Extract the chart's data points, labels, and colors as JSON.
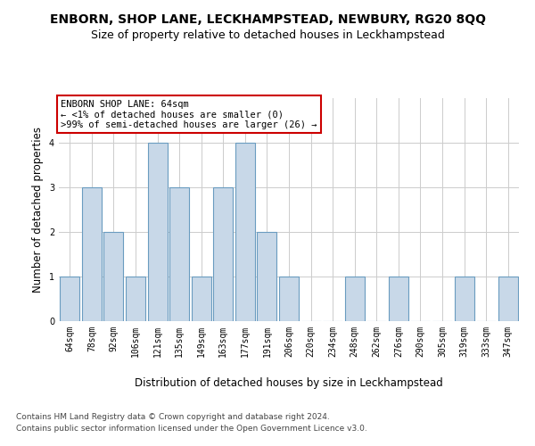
{
  "title": "ENBORN, SHOP LANE, LECKHAMPSTEAD, NEWBURY, RG20 8QQ",
  "subtitle": "Size of property relative to detached houses in Leckhampstead",
  "xlabel": "Distribution of detached houses by size in Leckhampstead",
  "ylabel": "Number of detached properties",
  "categories": [
    "64sqm",
    "78sqm",
    "92sqm",
    "106sqm",
    "121sqm",
    "135sqm",
    "149sqm",
    "163sqm",
    "177sqm",
    "191sqm",
    "206sqm",
    "220sqm",
    "234sqm",
    "248sqm",
    "262sqm",
    "276sqm",
    "290sqm",
    "305sqm",
    "319sqm",
    "333sqm",
    "347sqm"
  ],
  "values": [
    1,
    3,
    2,
    1,
    4,
    3,
    1,
    3,
    4,
    2,
    1,
    0,
    0,
    1,
    0,
    1,
    0,
    0,
    1,
    0,
    1
  ],
  "bar_color": "#c8d8e8",
  "bar_edge_color": "#6a9cc0",
  "annotation_box_text": "ENBORN SHOP LANE: 64sqm\n← <1% of detached houses are smaller (0)\n>99% of semi-detached houses are larger (26) →",
  "annotation_box_color": "#ffffff",
  "annotation_box_edge_color": "#cc0000",
  "ylim": [
    0,
    5
  ],
  "yticks": [
    0,
    1,
    2,
    3,
    4
  ],
  "background_color": "#ffffff",
  "grid_color": "#cccccc",
  "footer_line1": "Contains HM Land Registry data © Crown copyright and database right 2024.",
  "footer_line2": "Contains public sector information licensed under the Open Government Licence v3.0.",
  "title_fontsize": 10,
  "subtitle_fontsize": 9,
  "xlabel_fontsize": 8.5,
  "ylabel_fontsize": 8.5,
  "tick_fontsize": 7,
  "footer_fontsize": 6.5,
  "annotation_fontsize": 7.5
}
